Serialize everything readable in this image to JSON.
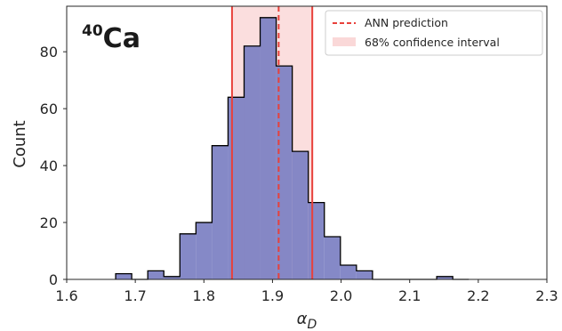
{
  "chart_data": {
    "type": "bar",
    "title": "",
    "annotation": {
      "mass": "40",
      "symbol": "Ca"
    },
    "xlabel": {
      "main": "α",
      "sub": "D"
    },
    "ylabel": "Count",
    "xlim": [
      1.6,
      2.3
    ],
    "ylim": [
      0,
      96
    ],
    "xticks": [
      "1.6",
      "1.7",
      "1.8",
      "1.9",
      "2.0",
      "2.1",
      "2.2",
      "2.3"
    ],
    "yticks": [
      "0",
      "20",
      "40",
      "60",
      "80"
    ],
    "grid": false,
    "legend_position": "top-right",
    "bin_edges": [
      1.6714,
      1.6948,
      1.7182,
      1.7416,
      1.765,
      1.7884,
      1.8118,
      1.8352,
      1.8586,
      1.882,
      1.9054,
      1.9288,
      1.9522,
      1.9756,
      1.999,
      2.0224,
      2.0458,
      2.0692,
      2.0926,
      2.116,
      2.1394,
      2.1628,
      2.1862
    ],
    "counts": [
      2,
      0,
      3,
      1,
      16,
      20,
      47,
      64,
      82,
      92,
      75,
      45,
      27,
      15,
      5,
      3,
      0,
      0,
      0,
      0,
      1,
      0
    ],
    "ann_prediction": 1.909,
    "confidence_interval": [
      1.841,
      1.958
    ],
    "legend": [
      "ANN prediction",
      "68% confidence interval"
    ],
    "colors": {
      "bars": "#7b7fc2",
      "bar_edge": "#000000",
      "interval_fill": "#f8c8c8",
      "line": "#e8413b"
    }
  }
}
